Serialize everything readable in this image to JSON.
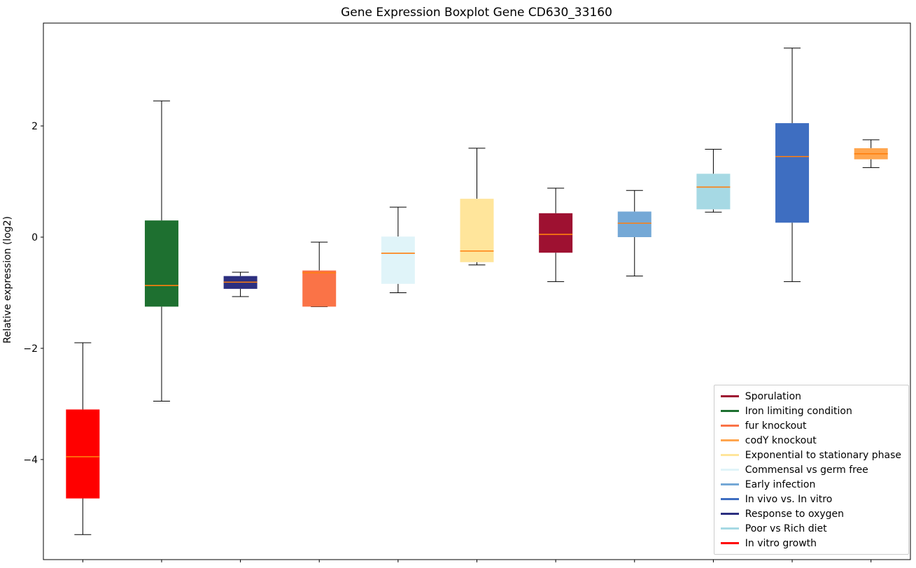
{
  "chart_data": {
    "type": "boxplot",
    "title": "Gene Expression Boxplot Gene CD630_33160",
    "xlabel": "",
    "ylabel": "Relative expression (log2)",
    "ylim": [
      -5.8,
      3.85
    ],
    "grid": false,
    "median_color": "#ff7f0e",
    "axis_color": "#000000",
    "yticks": [
      {
        "value": 2,
        "label": "2"
      },
      {
        "value": 0,
        "label": "0"
      },
      {
        "value": -2,
        "label": "−2"
      },
      {
        "value": -4,
        "label": "−4"
      }
    ],
    "series": [
      {
        "name": "In vitro growth",
        "color": "#ff0000",
        "whisker_low": -5.35,
        "q1": -4.7,
        "median": -3.95,
        "q3": -3.1,
        "whisker_high": -1.9
      },
      {
        "name": "Iron limiting condition",
        "color": "#1e7030",
        "whisker_low": -2.95,
        "q1": -1.25,
        "median": -0.87,
        "q3": 0.3,
        "whisker_high": 2.45
      },
      {
        "name": "Response to oxygen",
        "color": "#2c2f80",
        "whisker_low": -1.07,
        "q1": -0.93,
        "median": -0.81,
        "q3": -0.7,
        "whisker_high": -0.63
      },
      {
        "name": "fur knockout",
        "color": "#fa7347",
        "whisker_low": -1.25,
        "q1": -1.25,
        "median": -0.64,
        "q3": -0.6,
        "whisker_high": -0.09
      },
      {
        "name": "Commensal vs germ free",
        "color": "#e0f4f9",
        "whisker_low": -1.0,
        "q1": -0.84,
        "median": -0.29,
        "q3": 0.01,
        "whisker_high": 0.54
      },
      {
        "name": "Exponential to stationary phase",
        "color": "#ffe59b",
        "whisker_low": -0.5,
        "q1": -0.45,
        "median": -0.25,
        "q3": 0.69,
        "whisker_high": 1.6
      },
      {
        "name": "Sporulation",
        "color": "#9e1131",
        "whisker_low": -0.8,
        "q1": -0.28,
        "median": 0.05,
        "q3": 0.43,
        "whisker_high": 0.88
      },
      {
        "name": "Early infection",
        "color": "#74a8d6",
        "whisker_low": -0.7,
        "q1": 0.0,
        "median": 0.25,
        "q3": 0.46,
        "whisker_high": 0.84
      },
      {
        "name": "Poor vs Rich diet",
        "color": "#a6d9e4",
        "whisker_low": 0.45,
        "q1": 0.5,
        "median": 0.9,
        "q3": 1.14,
        "whisker_high": 1.58
      },
      {
        "name": "In vivo vs. In vitro",
        "color": "#3e6ec1",
        "whisker_low": -0.8,
        "q1": 0.26,
        "median": 1.45,
        "q3": 2.05,
        "whisker_high": 3.4
      },
      {
        "name": "codY knockout",
        "color": "#ffa64f",
        "whisker_low": 1.25,
        "q1": 1.4,
        "median": 1.5,
        "q3": 1.6,
        "whisker_high": 1.75
      }
    ],
    "legend": {
      "position": "lower right",
      "items": [
        {
          "label": "Sporulation",
          "color": "#9e1131"
        },
        {
          "label": "Iron limiting condition",
          "color": "#1e7030"
        },
        {
          "label": "fur knockout",
          "color": "#fa7347"
        },
        {
          "label": "codY knockout",
          "color": "#ffa64f"
        },
        {
          "label": "Exponential to stationary phase",
          "color": "#ffe59b"
        },
        {
          "label": "Commensal vs germ free",
          "color": "#e0f4f9"
        },
        {
          "label": "Early infection",
          "color": "#74a8d6"
        },
        {
          "label": "In vivo vs. In vitro",
          "color": "#3e6ec1"
        },
        {
          "label": "Response to oxygen",
          "color": "#2c2f80"
        },
        {
          "label": "Poor vs Rich diet",
          "color": "#a6d9e4"
        },
        {
          "label": "In vitro growth",
          "color": "#ff0000"
        }
      ]
    }
  }
}
